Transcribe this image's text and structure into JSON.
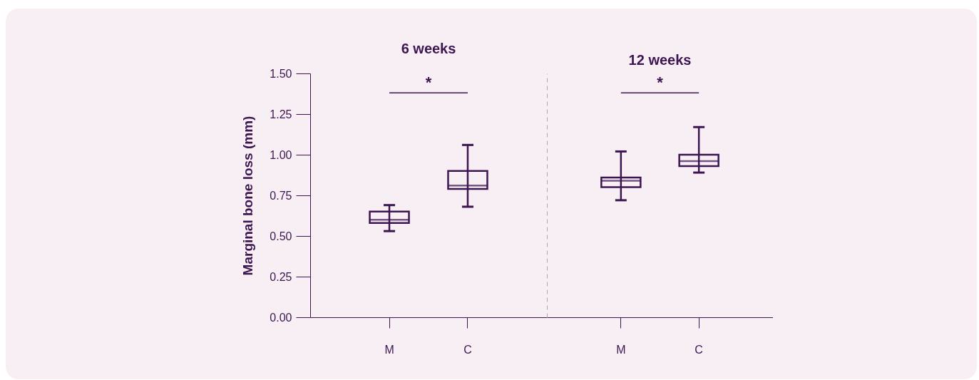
{
  "chart_data": [
    {
      "type": "box",
      "title": "6 weeks",
      "ylabel": "Marginal bone loss (mm)",
      "categories": [
        "M",
        "C"
      ],
      "color": "#3b1650",
      "boxes": [
        {
          "low": 0.53,
          "q1": 0.58,
          "median": 0.6,
          "q3": 0.65,
          "high": 0.69
        },
        {
          "low": 0.68,
          "q1": 0.79,
          "median": 0.81,
          "q3": 0.9,
          "high": 1.06
        }
      ],
      "ylim": [
        0,
        1.5
      ],
      "yticks": [
        {
          "value": 0,
          "label": "0.00"
        },
        {
          "value": 0.25,
          "label": "0.25"
        },
        {
          "value": 0.5,
          "label": "0.50"
        },
        {
          "value": 0.75,
          "label": "0.75"
        },
        {
          "value": 1,
          "label": "1.00"
        },
        {
          "value": 1.25,
          "label": "1.25"
        },
        {
          "value": 1.5,
          "label": "1.50"
        }
      ],
      "annotations": [
        "*"
      ]
    },
    {
      "type": "box",
      "title": "12 weeks",
      "categories": [
        "M",
        "C"
      ],
      "color": "#3b1650",
      "boxes": [
        {
          "low": 0.72,
          "q1": 0.8,
          "median": 0.84,
          "q3": 0.86,
          "high": 1.02
        },
        {
          "low": 0.89,
          "q1": 0.93,
          "median": 0.96,
          "q3": 1.0,
          "high": 1.17
        }
      ],
      "ylim": [
        0,
        1.5
      ],
      "tick_labels": "x",
      "annotations": [
        "*"
      ]
    }
  ]
}
